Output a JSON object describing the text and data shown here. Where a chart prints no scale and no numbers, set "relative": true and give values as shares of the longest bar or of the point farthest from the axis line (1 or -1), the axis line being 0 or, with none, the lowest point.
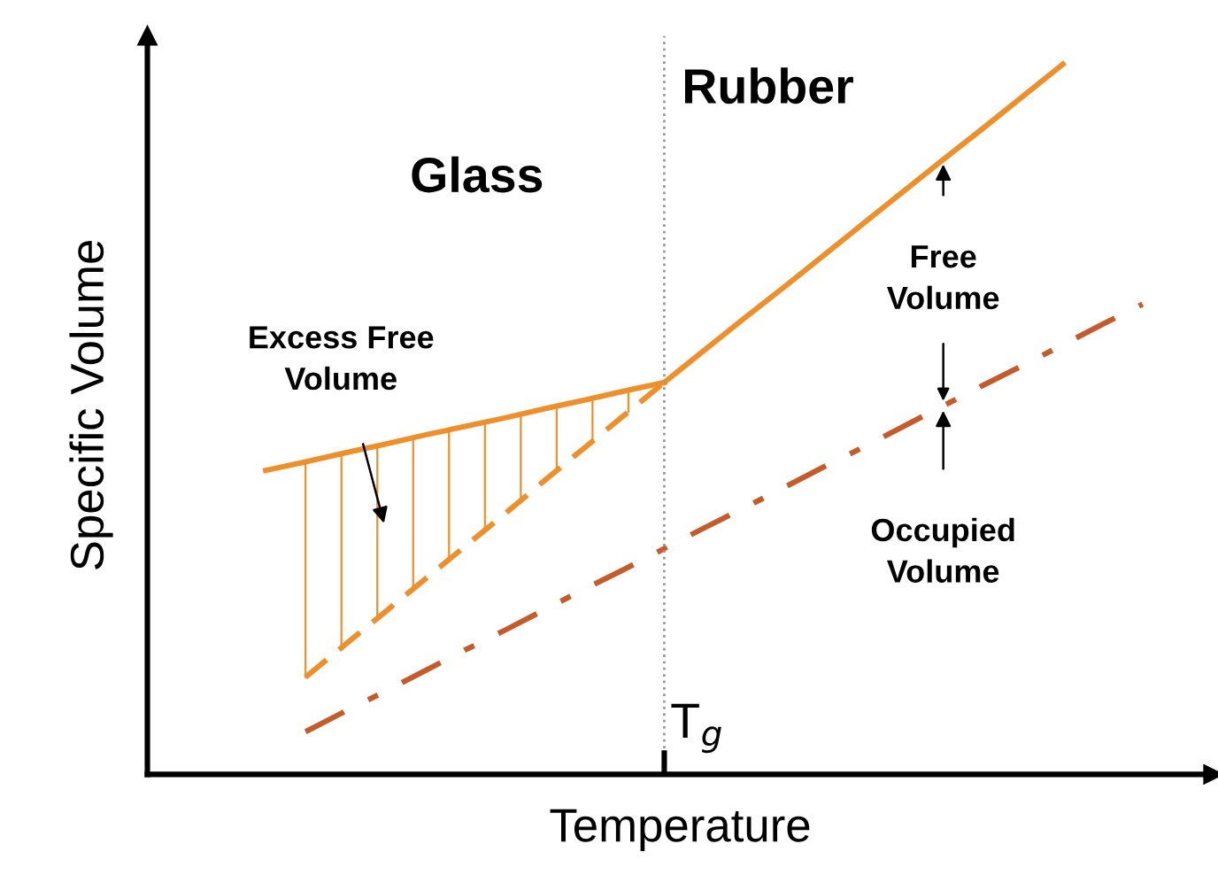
{
  "chart_data": {
    "type": "line",
    "relative": true,
    "xlabel": "Temperature",
    "ylabel": "Specific Volume",
    "marker": "none",
    "categories": [
      null,
      null,
      null,
      null,
      null,
      null,
      null,
      null,
      null,
      null,
      null,
      null,
      null,
      null,
      null,
      null,
      null,
      null,
      null,
      null,
      null,
      null,
      null
    ],
    "series": [
      {
        "color": "#ed8f2b",
        "line_style": "solid",
        "values": [
          0.428,
          0.44,
          0.453,
          0.465,
          0.478,
          0.49,
          0.502,
          0.515,
          0.527,
          0.54,
          0.552,
          null,
          null,
          null,
          null,
          null,
          null,
          null,
          null,
          null,
          null,
          null,
          null
        ]
      },
      {
        "color": "#ed8f2b",
        "line_style": "solid",
        "values": [
          null,
          null,
          null,
          null,
          null,
          null,
          null,
          null,
          null,
          null,
          0.552,
          0.597,
          0.642,
          0.686,
          0.731,
          0.776,
          0.821,
          0.866,
          0.91,
          0.955,
          1.0,
          null,
          null
        ]
      },
      {
        "color": "#ed8f2b",
        "line_style": "dashed",
        "values": [
          null,
          0.137,
          0.183,
          0.229,
          0.275,
          0.321,
          0.367,
          0.414,
          0.46,
          0.506,
          0.552,
          null,
          null,
          null,
          null,
          null,
          null,
          null,
          null,
          null,
          null,
          null,
          null
        ]
      },
      {
        "color": "#c55a2a",
        "line_style": "dashdot",
        "values": [
          null,
          0.06,
          0.089,
          0.117,
          0.146,
          0.175,
          0.203,
          0.232,
          0.261,
          0.289,
          0.318,
          0.347,
          0.375,
          0.404,
          0.433,
          0.461,
          0.49,
          0.519,
          0.548,
          0.576,
          0.605,
          0.634,
          0.662
        ]
      }
    ],
    "ref_lines": [
      {
        "axis": "x",
        "label": "T$_{g}$",
        "color": "#999999",
        "line_style": "dotted"
      }
    ],
    "annotations": [
      "Glass",
      "Rubber",
      "Excess Free Volume",
      "Free Volume",
      "Occupied Volume"
    ]
  }
}
